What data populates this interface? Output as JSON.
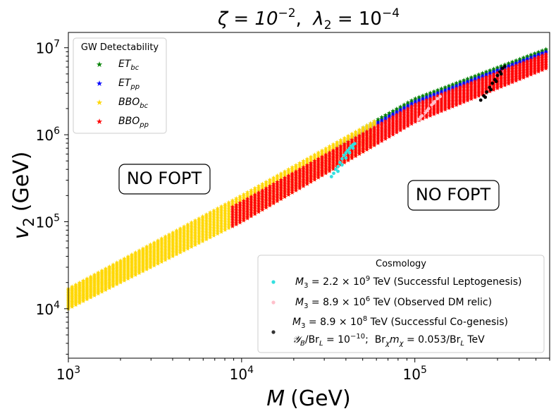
{
  "chart_data": {
    "type": "scatter",
    "title": "ζ = 10⁻², λ₂ = 10⁻⁴",
    "title_parts": {
      "zeta": "ζ = 10",
      "zeta_exp": "−2",
      "sep": ",  ",
      "lambda": "λ",
      "lambda_sub": "2",
      "lambda_rest": " = 10",
      "lambda_exp": "−4"
    },
    "xlabel": "M (GeV)",
    "xlabel_parts": {
      "var": "M",
      "unit": "(GeV)"
    },
    "ylabel": "v2 (GeV)",
    "ylabel_parts": {
      "var": "v",
      "sub": "2",
      "unit": "(GeV)"
    },
    "xscale": "log",
    "yscale": "log",
    "xlim": [
      1000,
      600000
    ],
    "ylim": [
      2700,
      15000000
    ],
    "xticks": [
      {
        "value": 1000,
        "base": "10",
        "exp": "3"
      },
      {
        "value": 10000,
        "base": "10",
        "exp": "4"
      },
      {
        "value": 100000,
        "base": "10",
        "exp": "5"
      }
    ],
    "yticks": [
      {
        "value": 10000,
        "base": "10",
        "exp": "4"
      },
      {
        "value": 100000,
        "base": "10",
        "exp": "5"
      },
      {
        "value": 1000000,
        "base": "10",
        "exp": "6"
      },
      {
        "value": 10000000,
        "base": "10",
        "exp": "7"
      }
    ],
    "band": {
      "lower": [
        [
          1000,
          10000
        ],
        [
          10000,
          100000
        ],
        [
          100000,
          1400000
        ],
        [
          600000,
          6000000
        ]
      ],
      "upper": [
        [
          1000,
          17000
        ],
        [
          10000,
          200000
        ],
        [
          100000,
          2600000
        ],
        [
          600000,
          10000000
        ]
      ]
    },
    "series": [
      {
        "name": "ET_bc",
        "label_main": "ET",
        "label_sub": "bc",
        "color": "#008000",
        "marker": "star",
        "region": {
          "x_range": [
            50000,
            600000
          ],
          "frac_range": [
            0.88,
            1.0
          ]
        }
      },
      {
        "name": "ET_pp",
        "label_main": "ET",
        "label_sub": "pp",
        "color": "#0000ff",
        "marker": "star",
        "region": {
          "x_range": [
            35000,
            600000
          ],
          "frac_range": [
            0.74,
            0.9
          ]
        }
      },
      {
        "name": "BBO_bc",
        "label_main": "BBO",
        "label_sub": "bc",
        "color": "#ffd700",
        "marker": "star",
        "region": {
          "x_range": [
            1000,
            60000
          ],
          "frac_range": [
            0.0,
            1.0
          ]
        }
      },
      {
        "name": "BBO_pp",
        "label_main": "BBO",
        "label_sub": "pp",
        "color": "#ff0000",
        "marker": "star",
        "region": {
          "x_range": [
            8500,
            600000
          ],
          "frac_range": [
            0.0,
            0.78
          ]
        }
      }
    ],
    "cosmology_series": [
      {
        "name": "Successful Leptogenesis",
        "color": "#33e0e0",
        "label": "M₃ = 2.2 × 10⁹ TeV (Successful Leptogenesis)",
        "points": [
          [
            33000,
            330000
          ],
          [
            34000,
            360000
          ],
          [
            35000,
            400000
          ],
          [
            36000,
            430000
          ],
          [
            37000,
            480000
          ],
          [
            38000,
            530000
          ],
          [
            39000,
            580000
          ],
          [
            40000,
            620000
          ],
          [
            41000,
            660000
          ],
          [
            42000,
            700000
          ],
          [
            43000,
            740000
          ],
          [
            44000,
            770000
          ],
          [
            45000,
            790000
          ],
          [
            36000,
            380000
          ],
          [
            38000,
            450000
          ],
          [
            40000,
            540000
          ],
          [
            42000,
            620000
          ],
          [
            44000,
            700000
          ]
        ]
      },
      {
        "name": "Observed DM relic",
        "color": "#ffc0cb",
        "label": "M₃ = 8.9 × 10⁶ TeV (Observed DM relic)",
        "points": [
          [
            105000,
            1500000
          ],
          [
            110000,
            1650000
          ],
          [
            115000,
            1800000
          ],
          [
            120000,
            2000000
          ],
          [
            125000,
            2200000
          ],
          [
            130000,
            2400000
          ],
          [
            135000,
            2600000
          ],
          [
            140000,
            2750000
          ],
          [
            108000,
            1600000
          ],
          [
            118000,
            1900000
          ],
          [
            128000,
            2300000
          ]
        ]
      },
      {
        "name": "Successful Co-genesis",
        "color": "#000000",
        "label_line1": "M₃ = 8.9 × 10⁸ TeV (Successful Co-genesis)",
        "label_line2": "𝒴B/BrL = 10⁻¹⁰;  Brχmχ = 0.053/BrL TeV",
        "points": [
          [
            240000,
            2500000
          ],
          [
            250000,
            2800000
          ],
          [
            260000,
            3100000
          ],
          [
            270000,
            3500000
          ],
          [
            280000,
            3900000
          ],
          [
            290000,
            4300000
          ],
          [
            300000,
            4800000
          ],
          [
            310000,
            5300000
          ],
          [
            320000,
            5800000
          ],
          [
            330000,
            6100000
          ],
          [
            255000,
            2700000
          ],
          [
            275000,
            3300000
          ],
          [
            295000,
            4100000
          ],
          [
            315000,
            5000000
          ]
        ]
      }
    ],
    "legend_gw": {
      "title": "GW Detectability",
      "placement": "top-left"
    },
    "legend_cosmo": {
      "title": "Cosmology",
      "placement": "lower-right"
    },
    "annotations": [
      {
        "text": "NO FOPT",
        "x": 2800,
        "y": 300000
      },
      {
        "text": "NO FOPT",
        "x": 150000,
        "y": 190000
      }
    ]
  },
  "cosmo_labels": {
    "lepto": {
      "pre": "M",
      "sub": "3",
      "mid": " = 2.2 × 10",
      "exp": "9",
      "post": " TeV (Successful Leptogenesis)"
    },
    "dm": {
      "pre": "M",
      "sub": "3",
      "mid": " = 8.9 × 10",
      "exp": "6",
      "post": " TeV (Observed DM relic)"
    },
    "co1": {
      "pre": "M",
      "sub": "3",
      "mid": " = 8.9 × 10",
      "exp": "8",
      "post": " TeV (Successful Co-genesis)"
    },
    "co2": {
      "y": "𝒴",
      "ysub": "B",
      "slash": "/Br",
      "lsub": "L",
      "eq": " = 10",
      "exp": "−10",
      "semi": ";  Br",
      "chi": "χ",
      "m": "m",
      "chi2": "χ",
      "val": " = 0.053/Br",
      "lsub2": "L",
      "unit": " TeV"
    }
  }
}
